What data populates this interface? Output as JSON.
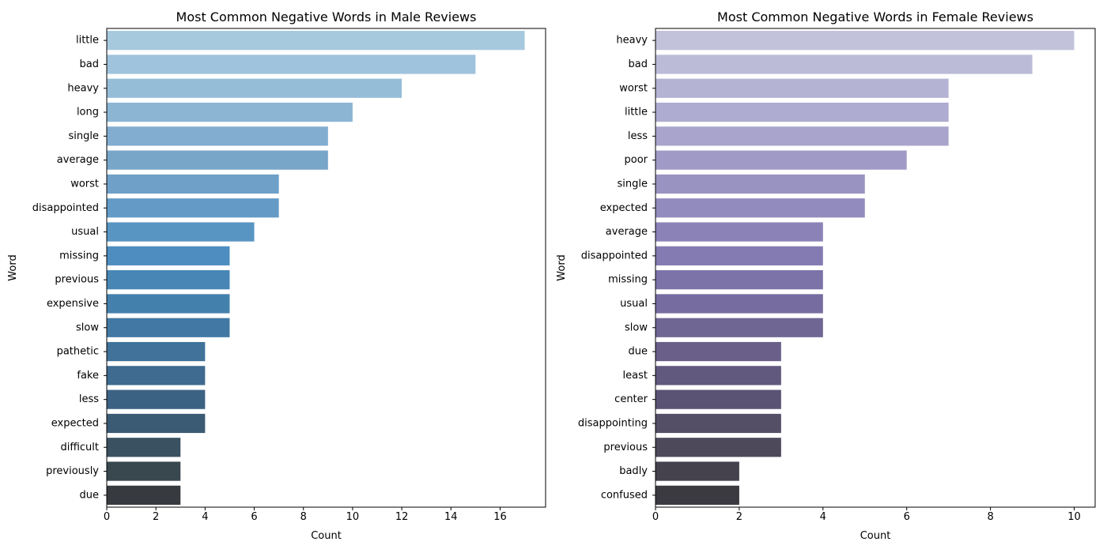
{
  "chart_data": [
    {
      "type": "bar",
      "orientation": "horizontal",
      "title": "Most Common Negative Words in Male Reviews",
      "xlabel": "Count",
      "ylabel": "Word",
      "xlim": [
        0,
        17.85
      ],
      "xticks": [
        0,
        2,
        4,
        6,
        8,
        10,
        12,
        14,
        16
      ],
      "categories": [
        "little",
        "bad",
        "heavy",
        "long",
        "single",
        "average",
        "worst",
        "disappointed",
        "usual",
        "missing",
        "previous",
        "expensive",
        "slow",
        "pathetic",
        "fake",
        "less",
        "expected",
        "difficult",
        "previously",
        "due"
      ],
      "values": [
        17,
        15,
        12,
        10,
        9,
        9,
        7,
        7,
        6,
        5,
        5,
        5,
        5,
        4,
        4,
        4,
        4,
        3,
        3,
        3
      ],
      "colors": [
        "#a7c9de",
        "#9fc3dc",
        "#96bdd8",
        "#8cb5d4",
        "#82acd0",
        "#78a6c9",
        "#6ea0c8",
        "#639bc6",
        "#5895c3",
        "#4d8dc0",
        "#4786b5",
        "#4480ac",
        "#4279a4",
        "#40729a",
        "#3e6b8f",
        "#3c6283",
        "#3b5a74",
        "#3a5161",
        "#39474f",
        "#373b40"
      ],
      "grid": false,
      "legend": "none"
    },
    {
      "type": "bar",
      "orientation": "horizontal",
      "title": "Most Common Negative Words in Female Reviews",
      "xlabel": "Count",
      "ylabel": "Word",
      "xlim": [
        0,
        10.5
      ],
      "xticks": [
        0,
        2,
        4,
        6,
        8,
        10
      ],
      "categories": [
        "heavy",
        "bad",
        "worst",
        "little",
        "less",
        "poor",
        "single",
        "expected",
        "average",
        "disappointed",
        "missing",
        "usual",
        "slow",
        "due",
        "least",
        "center",
        "disappointing",
        "previous",
        "badly",
        "confused"
      ],
      "values": [
        10,
        9,
        7,
        7,
        7,
        6,
        5,
        5,
        4,
        4,
        4,
        4,
        4,
        3,
        3,
        3,
        3,
        3,
        2,
        2
      ],
      "colors": [
        "#c2c2db",
        "#bbbbd8",
        "#b5b3d4",
        "#afacd1",
        "#a8a4cc",
        "#a09bc6",
        "#9993c1",
        "#928bbd",
        "#8b83b8",
        "#847bb2",
        "#7c73a9",
        "#766ca0",
        "#706694",
        "#695f89",
        "#62597e",
        "#5b5373",
        "#544e67",
        "#4d495a",
        "#45424d",
        "#3c3a41"
      ],
      "grid": false,
      "legend": "none"
    }
  ]
}
